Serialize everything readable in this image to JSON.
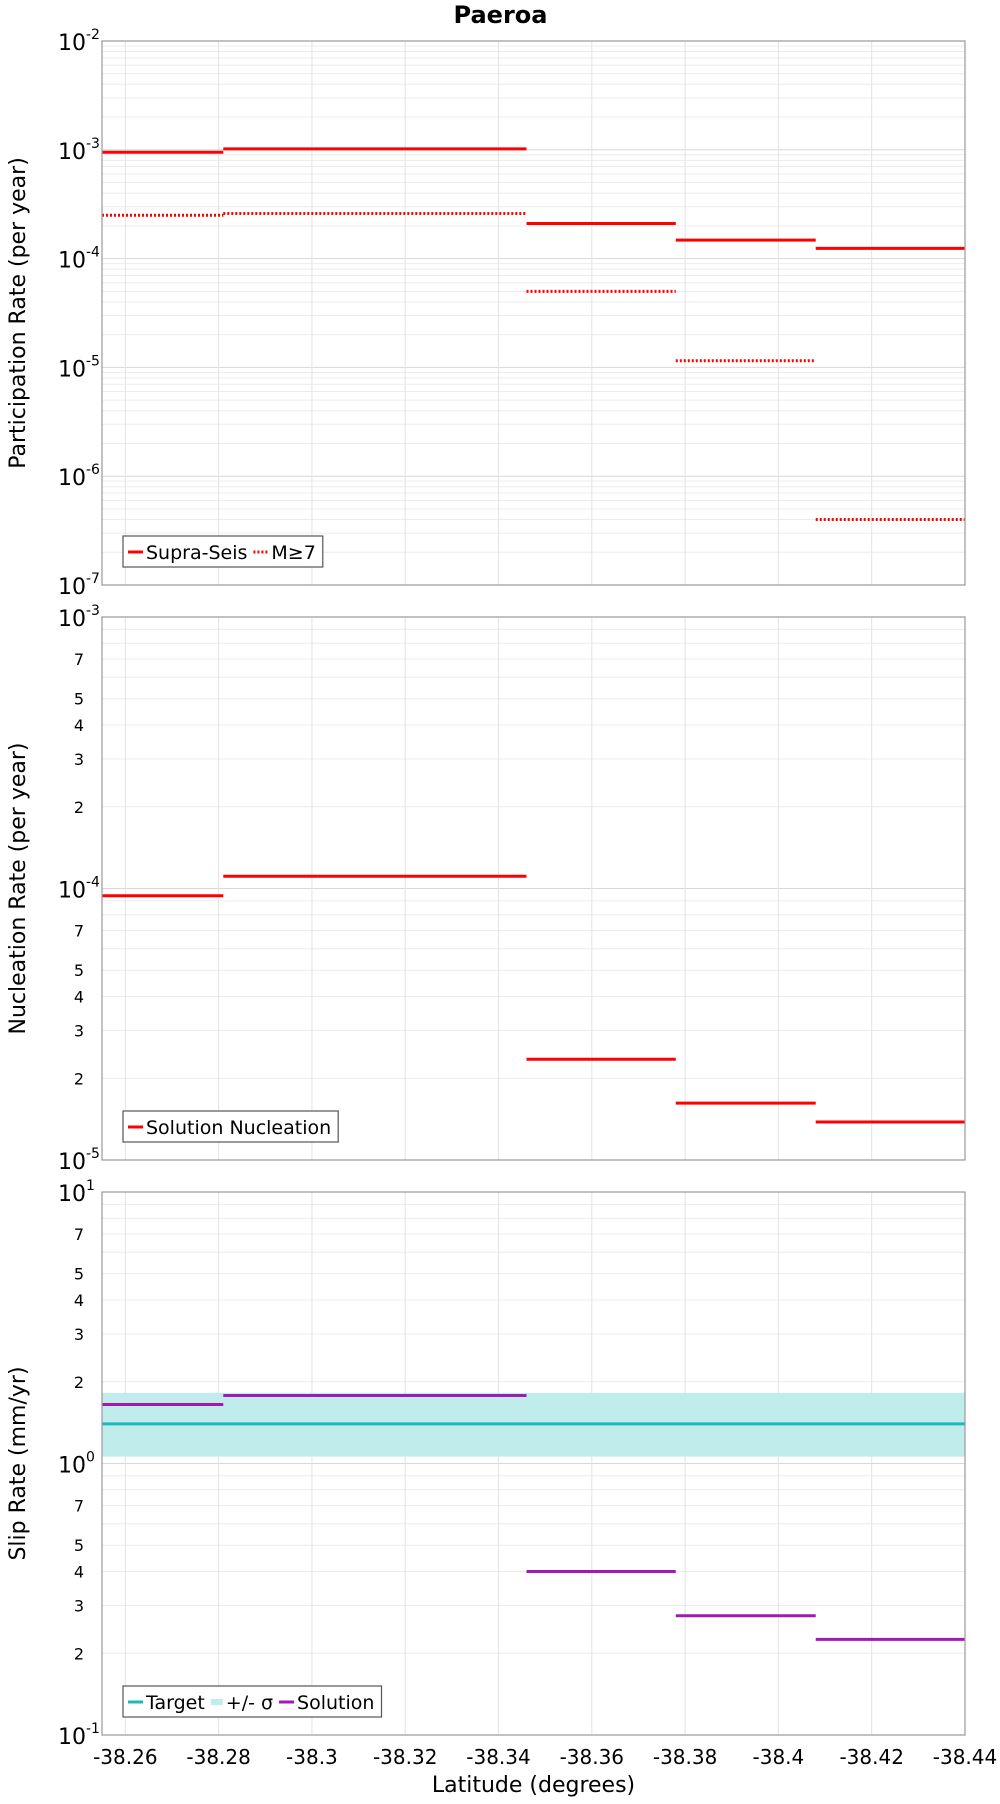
{
  "chart_data": [
    {
      "type": "line",
      "id": "participation",
      "title": "Paeroa",
      "ylabel": "Participation Rate (per year)",
      "yscale": "log",
      "ylim": [
        1e-07,
        0.01
      ],
      "grid": true,
      "legend_placement": "bottom-left",
      "y_major_ticks": [
        {
          "value": 0.01,
          "base": "10",
          "exp": "-2"
        },
        {
          "value": 0.001,
          "base": "10",
          "exp": "-3"
        },
        {
          "value": 0.0001,
          "base": "10",
          "exp": "-4"
        },
        {
          "value": 1e-05,
          "base": "10",
          "exp": "-5"
        },
        {
          "value": 1e-06,
          "base": "10",
          "exp": "-6"
        },
        {
          "value": 1e-07,
          "base": "10",
          "exp": "-7"
        }
      ],
      "y_minor_labels": [],
      "series": [
        {
          "name": "Supra-Seis",
          "color": "#ff0000",
          "style": "solid",
          "segments": [
            {
              "x0": -38.255,
              "x1": -38.281,
              "y": 0.00095
            },
            {
              "x0": -38.281,
              "x1": -38.346,
              "y": 0.00102
            },
            {
              "x0": -38.346,
              "x1": -38.378,
              "y": 0.00021
            },
            {
              "x0": -38.378,
              "x1": -38.408,
              "y": 0.000148
            },
            {
              "x0": -38.408,
              "x1": -38.44,
              "y": 0.000124
            }
          ]
        },
        {
          "name": "M≥7",
          "color": "#ff0000",
          "style": "dotted",
          "segments": [
            {
              "x0": -38.255,
              "x1": -38.281,
              "y": 0.00025
            },
            {
              "x0": -38.281,
              "x1": -38.346,
              "y": 0.00026
            },
            {
              "x0": -38.346,
              "x1": -38.378,
              "y": 5e-05
            },
            {
              "x0": -38.378,
              "x1": -38.408,
              "y": 1.15e-05
            },
            {
              "x0": -38.408,
              "x1": -38.44,
              "y": 4e-07
            }
          ]
        }
      ]
    },
    {
      "type": "line",
      "id": "nucleation",
      "title": "",
      "ylabel": "Nucleation Rate (per year)",
      "yscale": "log",
      "ylim": [
        1e-05,
        0.001
      ],
      "grid": true,
      "legend_placement": "bottom-left",
      "y_major_ticks": [
        {
          "value": 0.001,
          "base": "10",
          "exp": "-3"
        },
        {
          "value": 0.0001,
          "base": "10",
          "exp": "-4"
        },
        {
          "value": 1e-05,
          "base": "10",
          "exp": "-5"
        }
      ],
      "y_minor_labels": [
        {
          "value": 0.0007,
          "label": "7"
        },
        {
          "value": 0.0005,
          "label": "5"
        },
        {
          "value": 0.0004,
          "label": "4"
        },
        {
          "value": 0.0003,
          "label": "3"
        },
        {
          "value": 0.0002,
          "label": "2"
        },
        {
          "value": 7e-05,
          "label": "7"
        },
        {
          "value": 5e-05,
          "label": "5"
        },
        {
          "value": 4e-05,
          "label": "4"
        },
        {
          "value": 3e-05,
          "label": "3"
        },
        {
          "value": 2e-05,
          "label": "2"
        }
      ],
      "series": [
        {
          "name": "Solution Nucleation",
          "color": "#ff0000",
          "style": "solid",
          "segments": [
            {
              "x0": -38.255,
              "x1": -38.281,
              "y": 9.4e-05
            },
            {
              "x0": -38.281,
              "x1": -38.346,
              "y": 0.000111
            },
            {
              "x0": -38.346,
              "x1": -38.378,
              "y": 2.35e-05
            },
            {
              "x0": -38.378,
              "x1": -38.408,
              "y": 1.62e-05
            },
            {
              "x0": -38.408,
              "x1": -38.44,
              "y": 1.38e-05
            }
          ]
        }
      ]
    },
    {
      "type": "line",
      "id": "slip",
      "title": "",
      "xlabel": "Latitude (degrees)",
      "ylabel": "Slip Rate (mm/yr)",
      "yscale": "log",
      "ylim": [
        0.1,
        10
      ],
      "xlim": [
        -38.255,
        -38.44
      ],
      "x_ticks": [
        {
          "value": -38.26,
          "label": "-38.26"
        },
        {
          "value": -38.28,
          "label": "-38.28"
        },
        {
          "value": -38.3,
          "label": "-38.3"
        },
        {
          "value": -38.32,
          "label": "-38.32"
        },
        {
          "value": -38.34,
          "label": "-38.34"
        },
        {
          "value": -38.36,
          "label": "-38.36"
        },
        {
          "value": -38.38,
          "label": "-38.38"
        },
        {
          "value": -38.4,
          "label": "-38.4"
        },
        {
          "value": -38.42,
          "label": "-38.42"
        },
        {
          "value": -38.44,
          "label": "-38.44"
        }
      ],
      "grid": true,
      "legend_placement": "bottom-left",
      "y_major_ticks": [
        {
          "value": 10,
          "base": "10",
          "exp": "1"
        },
        {
          "value": 1,
          "base": "10",
          "exp": "0"
        },
        {
          "value": 0.1,
          "base": "10",
          "exp": "-1"
        }
      ],
      "y_minor_labels": [
        {
          "value": 7,
          "label": "7"
        },
        {
          "value": 5,
          "label": "5"
        },
        {
          "value": 4,
          "label": "4"
        },
        {
          "value": 3,
          "label": "3"
        },
        {
          "value": 2,
          "label": "2"
        },
        {
          "value": 0.7,
          "label": "7"
        },
        {
          "value": 0.5,
          "label": "5"
        },
        {
          "value": 0.4,
          "label": "4"
        },
        {
          "value": 0.3,
          "label": "3"
        },
        {
          "value": 0.2,
          "label": "2"
        }
      ],
      "band": {
        "name": "+/- σ",
        "color": "#c0ecec",
        "y_low": 1.06,
        "y_high": 1.82,
        "x0": -38.255,
        "x1": -38.44
      },
      "series": [
        {
          "name": "Target",
          "color": "#1fb8b8",
          "style": "solid",
          "segments": [
            {
              "x0": -38.255,
              "x1": -38.44,
              "y": 1.4
            }
          ]
        },
        {
          "name": "Solution",
          "color": "#a01ab4",
          "style": "solid",
          "segments": [
            {
              "x0": -38.255,
              "x1": -38.281,
              "y": 1.65
            },
            {
              "x0": -38.281,
              "x1": -38.346,
              "y": 1.78
            },
            {
              "x0": -38.346,
              "x1": -38.378,
              "y": 0.4
            },
            {
              "x0": -38.378,
              "x1": -38.408,
              "y": 0.275
            },
            {
              "x0": -38.408,
              "x1": -38.44,
              "y": 0.225
            }
          ]
        }
      ],
      "legend_order": [
        "Target",
        "+/- σ",
        "Solution"
      ]
    }
  ]
}
